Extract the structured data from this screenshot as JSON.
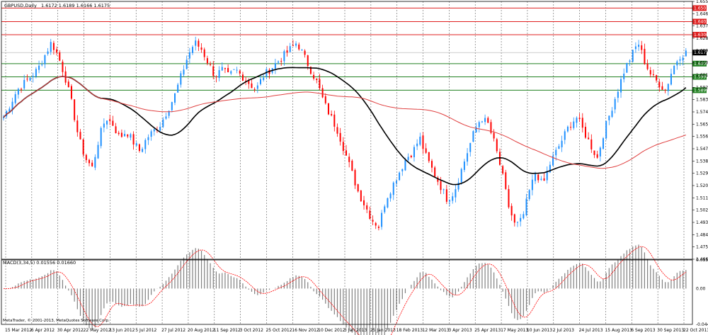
{
  "window_title": "GBPUSD,Daily",
  "ohlc_readout": "1.6172 1.6189 1.6166 1.6175",
  "indicator_title": "MACD(3,34,5) 0.01556 0.01660",
  "copyright": "MetaTrader, © 2001-2013, MetaQuotes Software Corp.",
  "colors": {
    "bull_candle": "#1e90ff",
    "bear_candle": "#ff0000",
    "ma_fast": "#000000",
    "ma_slow": "#e04040",
    "resistance_line": "#e02020",
    "support_line": "#208020",
    "macd_histogram": "#808080",
    "macd_signal": "#ff0000"
  },
  "chart_data": [
    {
      "type": "candlestick",
      "symbol": "GBPUSD",
      "timeframe": "Daily",
      "ylim": [
        1.466,
        1.655
      ],
      "y_tick_labels": [
        "1.6550",
        "1.6460",
        "1.6370",
        "1.6280",
        "1.6190",
        "1.6100",
        "1.6010",
        "1.5920",
        "1.5830",
        "1.5740",
        "1.5650",
        "1.5560",
        "1.5470",
        "1.5380",
        "1.5290",
        "1.5200",
        "1.5110",
        "1.5020",
        "1.4930",
        "1.4840",
        "1.4750",
        "1.4660"
      ],
      "x_tick_labels": [
        "15 Mar 2012",
        "6 Apr 2012",
        "30 Apr 2012",
        "22 May 2012",
        "13 Jun 2012",
        "5 Jul 2012",
        "27 Jul 2012",
        "20 Aug 2012",
        "11 Sep 2012",
        "3 Oct 2012",
        "25 Oct 2012",
        "16 Nov 2012",
        "10 Dec 2012",
        "3 Jan 2013",
        "25 Jan 2013",
        "18 Feb 2013",
        "12 Mar 2013",
        "3 Apr 2013",
        "25 Apr 2013",
        "17 May 2013",
        "10 Jun 2013",
        "2 Jul 2013",
        "24 Jul 2013",
        "15 Aug 2013",
        "6 Sep 2013",
        "30 Sep 2013",
        "22 Oct 2013"
      ],
      "horizontal_levels": [
        {
          "value": 1.6501,
          "label": "1.6501",
          "kind": "resistance"
        },
        {
          "value": 1.6402,
          "label": "1.6402",
          "kind": "resistance"
        },
        {
          "value": 1.6306,
          "label": "1.6306",
          "kind": "resistance"
        },
        {
          "value": 1.6175,
          "label": "1.6175",
          "kind": "current_price"
        },
        {
          "value": 1.6094,
          "label": "1.6094",
          "kind": "support"
        },
        {
          "value": 1.5997,
          "label": "1.5997",
          "kind": "support"
        },
        {
          "value": 1.5899,
          "label": "1.5899",
          "kind": "support"
        }
      ],
      "close_path": [
        1.57,
        1.58,
        1.59,
        1.595,
        1.6,
        1.605,
        1.615,
        1.625,
        1.615,
        1.6,
        1.58,
        1.555,
        1.54,
        1.533,
        1.555,
        1.57,
        1.565,
        1.555,
        1.56,
        1.552,
        1.545,
        1.555,
        1.56,
        1.565,
        1.575,
        1.585,
        1.6,
        1.615,
        1.625,
        1.62,
        1.61,
        1.6,
        1.605,
        1.6,
        1.605,
        1.6,
        1.595,
        1.59,
        1.6,
        1.605,
        1.61,
        1.615,
        1.62,
        1.625,
        1.615,
        1.605,
        1.595,
        1.58,
        1.57,
        1.56,
        1.545,
        1.53,
        1.515,
        1.505,
        1.495,
        1.49,
        1.51,
        1.52,
        1.53,
        1.54,
        1.545,
        1.555,
        1.54,
        1.53,
        1.52,
        1.51,
        1.515,
        1.53,
        1.545,
        1.56,
        1.57,
        1.565,
        1.55,
        1.53,
        1.505,
        1.49,
        1.495,
        1.515,
        1.53,
        1.52,
        1.535,
        1.545,
        1.555,
        1.565,
        1.57,
        1.56,
        1.55,
        1.54,
        1.56,
        1.575,
        1.59,
        1.605,
        1.615,
        1.625,
        1.61,
        1.6,
        1.595,
        1.59,
        1.605,
        1.615,
        1.6175
      ],
      "macd": {
        "label": "MACD(3,34,5)",
        "main": 0.01556,
        "signal": 0.0166,
        "ylim": [
          -0.04468,
          0.03573
        ],
        "y_tick_labels": [
          "0.03573",
          "0.00",
          "-0.04468"
        ]
      }
    }
  ]
}
